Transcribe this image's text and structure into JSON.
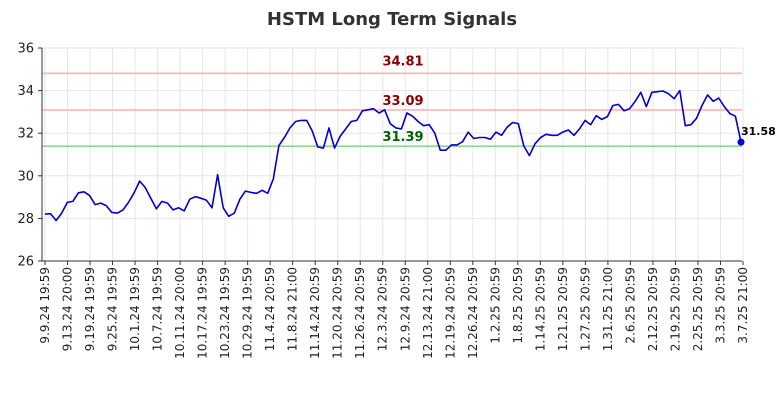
{
  "chart_data": {
    "type": "line",
    "title": "HSTM Long Term Signals",
    "xlabel": "",
    "ylabel": "",
    "ylim": [
      26,
      36
    ],
    "yticks": [
      26,
      28,
      30,
      32,
      34,
      36
    ],
    "grid": true,
    "x_tick_labels": [
      "9.9.24 19:59",
      "9.13.24 20:00",
      "9.19.24 19:59",
      "9.25.24 19:59",
      "10.1.24 19:59",
      "10.7.24 19:59",
      "10.11.24 20:00",
      "10.17.24 19:59",
      "10.23.24 19:59",
      "10.29.24 19:59",
      "11.4.24 20:59",
      "11.8.24 21:00",
      "11.14.24 20:59",
      "11.20.24 20:59",
      "11.26.24 20:59",
      "12.3.24 20:59",
      "12.9.24 20:59",
      "12.13.24 21:00",
      "12.19.24 20:59",
      "12.26.24 20:59",
      "1.2.25 20:59",
      "1.8.25 20:59",
      "1.14.25 20:59",
      "1.21.25 20:59",
      "1.27.25 20:59",
      "1.31.25 21:00",
      "2.6.25 20:59",
      "2.12.25 20:59",
      "2.19.25 20:59",
      "2.25.25 20:59",
      "3.3.25 20:59",
      "3.7.25 21:00"
    ],
    "series": [
      {
        "values": [
          28.2,
          28.22,
          27.9,
          28.25,
          28.75,
          28.8,
          29.2,
          29.25,
          29.08,
          28.65,
          28.72,
          28.6,
          28.28,
          28.25,
          28.4,
          28.75,
          29.2,
          29.75,
          29.45,
          28.95,
          28.45,
          28.8,
          28.72,
          28.4,
          28.5,
          28.35,
          28.9,
          29.02,
          28.95,
          28.85,
          28.5,
          30.05,
          28.5,
          28.1,
          28.25,
          28.9,
          29.28,
          29.22,
          29.18,
          29.32,
          29.18,
          29.85,
          31.42,
          31.8,
          32.25,
          32.55,
          32.6,
          32.6,
          32.1,
          31.35,
          31.3,
          32.25,
          31.3,
          31.85,
          32.2,
          32.55,
          32.6,
          33.05,
          33.1,
          33.15,
          32.95,
          33.1,
          32.45,
          32.25,
          32.2,
          32.95,
          32.8,
          32.55,
          32.35,
          32.4,
          32,
          31.2,
          31.2,
          31.45,
          31.45,
          31.6,
          32.05,
          31.75,
          31.8,
          31.8,
          31.72,
          32.05,
          31.9,
          32.28,
          32.5,
          32.45,
          31.4,
          30.95,
          31.5,
          31.8,
          31.95,
          31.9,
          31.9,
          32.05,
          32.15,
          31.9,
          32.2,
          32.6,
          32.4,
          32.82,
          32.65,
          32.78,
          33.3,
          33.35,
          33.05,
          33.15,
          33.5,
          33.92,
          33.25,
          33.92,
          33.95,
          33.98,
          33.85,
          33.62,
          34,
          32.35,
          32.4,
          32.7,
          33.3,
          33.8,
          33.5,
          33.65,
          33.25,
          32.92,
          32.8,
          31.58
        ]
      }
    ],
    "reference_lines": [
      {
        "value": 34.81,
        "label": "34.81",
        "color": "#ffb3b3",
        "label_color": "#8b0000"
      },
      {
        "value": 33.09,
        "label": "33.09",
        "color": "#ffb3b3",
        "label_color": "#8b0000"
      },
      {
        "value": 31.39,
        "label": "31.39",
        "color": "#90d890",
        "label_color": "#006400"
      }
    ],
    "last_value_label": "31.58",
    "line_color": "#0000cc"
  }
}
